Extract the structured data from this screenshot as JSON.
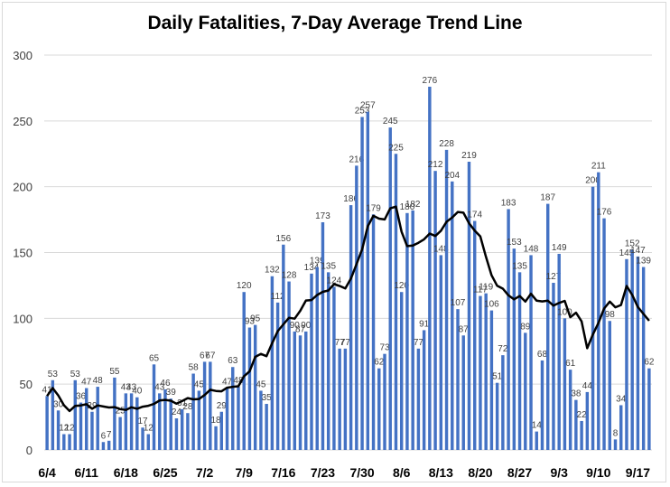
{
  "chart_data": {
    "type": "bar",
    "title": "Daily Fatalities, 7-Day Average Trend Line",
    "xlabel": "",
    "ylabel": "",
    "ylim": [
      0,
      300
    ],
    "yticks": [
      0,
      50,
      100,
      150,
      200,
      250,
      300
    ],
    "grid": true,
    "legend": "none",
    "start_date": "6/4",
    "xtick_labels": [
      "6/4",
      "6/11",
      "6/18",
      "6/25",
      "7/2",
      "7/9",
      "7/16",
      "7/23",
      "7/30",
      "8/6",
      "8/13",
      "8/20",
      "8/27",
      "9/3",
      "9/10",
      "9/17"
    ],
    "xtick_every_days": 7,
    "series": [
      {
        "name": "Daily Fatalities",
        "type": "bar",
        "color": "#4472c4",
        "values": [
          41,
          53,
          30,
          12,
          12,
          53,
          36,
          47,
          29,
          48,
          6,
          7,
          55,
          25,
          43,
          43,
          40,
          17,
          12,
          65,
          43,
          46,
          39,
          24,
          31,
          28,
          58,
          45,
          67,
          67,
          18,
          29,
          47,
          63,
          48,
          120,
          93,
          95,
          45,
          35,
          132,
          112,
          156,
          128,
          90,
          87,
          90,
          134,
          139,
          173,
          135,
          124,
          77,
          77,
          186,
          216,
          253,
          257,
          179,
          62,
          73,
          245,
          225,
          120,
          180,
          182,
          77,
          91,
          276,
          212,
          148,
          228,
          204,
          107,
          87,
          219,
          174,
          117,
          119,
          106,
          51,
          72,
          183,
          153,
          135,
          89,
          148,
          14,
          68,
          187,
          127,
          149,
          100,
          61,
          38,
          22,
          44,
          200,
          211,
          176,
          98,
          8,
          34,
          145,
          152,
          147,
          139,
          62
        ]
      },
      {
        "name": "7-Day Average",
        "type": "line",
        "color": "#000000",
        "window": 7
      }
    ]
  }
}
